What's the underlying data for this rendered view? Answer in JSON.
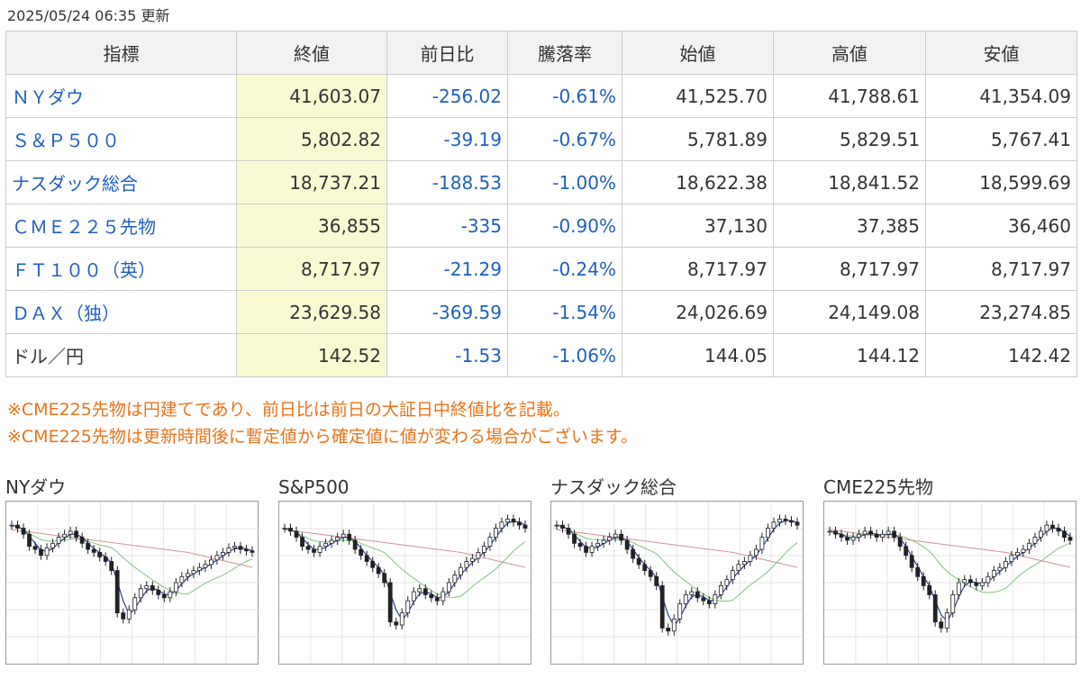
{
  "updated": "2025/05/24 06:35 更新",
  "table": {
    "headers": [
      "指標",
      "終値",
      "前日比",
      "騰落率",
      "始値",
      "高値",
      "安値"
    ],
    "rows": [
      {
        "name": "ＮＹダウ",
        "close": "41,603.07",
        "change": "-256.02",
        "rate": "-0.61%",
        "open": "41,525.70",
        "high": "41,788.61",
        "low": "41,354.09",
        "link": true
      },
      {
        "name": "Ｓ＆Ｐ５００",
        "close": "5,802.82",
        "change": "-39.19",
        "rate": "-0.67%",
        "open": "5,781.89",
        "high": "5,829.51",
        "low": "5,767.41",
        "link": true
      },
      {
        "name": "ナスダック総合",
        "close": "18,737.21",
        "change": "-188.53",
        "rate": "-1.00%",
        "open": "18,622.38",
        "high": "18,841.52",
        "low": "18,599.69",
        "link": true
      },
      {
        "name": "ＣＭＥ２２５先物",
        "close": "36,855",
        "change": "-335",
        "rate": "-0.90%",
        "open": "37,130",
        "high": "37,385",
        "low": "36,460",
        "link": true
      },
      {
        "name": "ＦＴ１００（英）",
        "close": "8,717.97",
        "change": "-21.29",
        "rate": "-0.24%",
        "open": "8,717.97",
        "high": "8,717.97",
        "low": "8,717.97",
        "link": true
      },
      {
        "name": "ＤＡＸ（独）",
        "close": "23,629.58",
        "change": "-369.59",
        "rate": "-1.54%",
        "open": "24,026.69",
        "high": "24,149.08",
        "low": "23,274.85",
        "link": true
      },
      {
        "name": "ドル／円",
        "close": "142.52",
        "change": "-1.53",
        "rate": "-1.06%",
        "open": "144.05",
        "high": "144.12",
        "low": "142.42",
        "link": false
      }
    ]
  },
  "notes": [
    "※CME225先物は円建てであり、前日比は前日の大証日中終値比を記載。",
    "※CME225先物は更新時間後に暫定値から確定値に値が変わる場合がございます。"
  ],
  "charts": [
    {
      "title": "NYダウ",
      "values": [
        88,
        86,
        82,
        74,
        72,
        68,
        73,
        76,
        80,
        82,
        84,
        80,
        76,
        72,
        70,
        67,
        64,
        58,
        30,
        26,
        32,
        40,
        46,
        48,
        45,
        42,
        40,
        44,
        50,
        54,
        56,
        58,
        60,
        62,
        65,
        68,
        70,
        73,
        74,
        72,
        71,
        70
      ]
    },
    {
      "title": "S&P500",
      "values": [
        86,
        84,
        80,
        74,
        72,
        70,
        74,
        76,
        78,
        80,
        82,
        78,
        72,
        68,
        64,
        60,
        56,
        50,
        24,
        22,
        30,
        38,
        44,
        46,
        42,
        40,
        38,
        44,
        50,
        55,
        60,
        64,
        66,
        70,
        74,
        80,
        86,
        90,
        92,
        90,
        88,
        86
      ]
    },
    {
      "title": "ナスダック総合",
      "values": [
        88,
        86,
        82,
        76,
        74,
        70,
        74,
        76,
        78,
        80,
        82,
        78,
        72,
        66,
        62,
        58,
        54,
        48,
        20,
        18,
        26,
        36,
        42,
        44,
        40,
        38,
        36,
        42,
        48,
        52,
        58,
        62,
        64,
        68,
        72,
        80,
        86,
        90,
        92,
        91,
        90,
        88
      ]
    },
    {
      "title": "CME225先物",
      "values": [
        84,
        82,
        80,
        78,
        80,
        82,
        84,
        82,
        80,
        82,
        84,
        80,
        74,
        68,
        60,
        54,
        48,
        42,
        24,
        20,
        30,
        42,
        50,
        52,
        50,
        48,
        50,
        54,
        58,
        60,
        64,
        68,
        70,
        72,
        76,
        80,
        84,
        88,
        86,
        84,
        80,
        78
      ]
    }
  ],
  "colors": {
    "link": "#1f5fbf",
    "note": "#e8741a",
    "highlight": "#fafad2",
    "ma_short": "#2a3f9a",
    "ma_mid": "#7cc47c",
    "ma_long": "#d39090"
  }
}
